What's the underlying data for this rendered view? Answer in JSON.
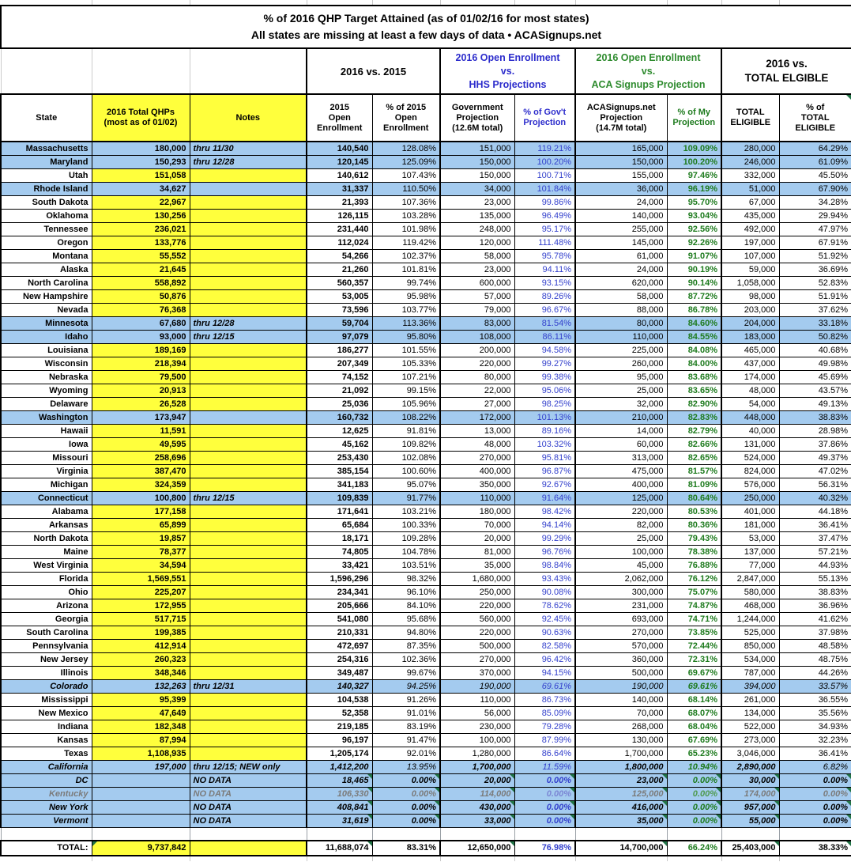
{
  "title": {
    "line1": "% of 2016 QHP Target Attained (as of 01/02/16 for most states)",
    "line2": "All states are missing at least a few days of data • ACASignups.net"
  },
  "groups": {
    "vs2015": "2016 vs. 2015",
    "hhs": "2016 Open Enrollment\nvs.\nHHS Projections",
    "acasignups": "2016 Open Enrollment\nvs.\nACA Signups Projection",
    "eligible": "2016 vs.\nTOTAL ELGIBLE"
  },
  "columns": {
    "state": "State",
    "qhp": "2016 Total QHPs\n(most as of 01/02)",
    "notes": "Notes",
    "oe2015": "2015\nOpen\nEnrollment",
    "pct2015": "% of 2015\nOpen\nEnrollment",
    "gov": "Government\nProjection\n(12.6M total)",
    "pctgov": "% of Gov't\nProjection",
    "aca": "ACASignups.net\nProjection\n(14.7M total)",
    "pctaca": "% of My\nProjection",
    "eligible": "TOTAL\nELIGIBLE",
    "pcteligible": "% of\nTOTAL\nELIGIBLE"
  },
  "colors": {
    "row_blue": "#A4CBEF",
    "cell_yellow": "#FFFF3C",
    "blue_text": "#3340CC",
    "green_text": "#1E7B1E",
    "gray_text": "#7B7B7B",
    "triangle_green": "#217346"
  },
  "rows": [
    [
      "Massachusetts",
      "180,000",
      "thru 11/30",
      "140,540",
      "128.08%",
      "151,000",
      "119.21%",
      "165,000",
      "109.09%",
      "280,000",
      "64.29%",
      "b"
    ],
    [
      "Maryland",
      "150,293",
      "thru 12/28",
      "120,145",
      "125.09%",
      "150,000",
      "100.20%",
      "150,000",
      "100.20%",
      "246,000",
      "61.09%",
      "b"
    ],
    [
      "Utah",
      "151,058",
      "",
      "140,612",
      "107.43%",
      "150,000",
      "100.71%",
      "155,000",
      "97.46%",
      "332,000",
      "45.50%",
      ""
    ],
    [
      "Rhode Island",
      "34,627",
      "",
      "31,337",
      "110.50%",
      "34,000",
      "101.84%",
      "36,000",
      "96.19%",
      "51,000",
      "67.90%",
      "b"
    ],
    [
      "South Dakota",
      "22,967",
      "",
      "21,393",
      "107.36%",
      "23,000",
      "99.86%",
      "24,000",
      "95.70%",
      "67,000",
      "34.28%",
      ""
    ],
    [
      "Oklahoma",
      "130,256",
      "",
      "126,115",
      "103.28%",
      "135,000",
      "96.49%",
      "140,000",
      "93.04%",
      "435,000",
      "29.94%",
      ""
    ],
    [
      "Tennessee",
      "236,021",
      "",
      "231,440",
      "101.98%",
      "248,000",
      "95.17%",
      "255,000",
      "92.56%",
      "492,000",
      "47.97%",
      ""
    ],
    [
      "Oregon",
      "133,776",
      "",
      "112,024",
      "119.42%",
      "120,000",
      "111.48%",
      "145,000",
      "92.26%",
      "197,000",
      "67.91%",
      ""
    ],
    [
      "Montana",
      "55,552",
      "",
      "54,266",
      "102.37%",
      "58,000",
      "95.78%",
      "61,000",
      "91.07%",
      "107,000",
      "51.92%",
      ""
    ],
    [
      "Alaska",
      "21,645",
      "",
      "21,260",
      "101.81%",
      "23,000",
      "94.11%",
      "24,000",
      "90.19%",
      "59,000",
      "36.69%",
      ""
    ],
    [
      "North Carolina",
      "558,892",
      "",
      "560,357",
      "99.74%",
      "600,000",
      "93.15%",
      "620,000",
      "90.14%",
      "1,058,000",
      "52.83%",
      ""
    ],
    [
      "New Hampshire",
      "50,876",
      "",
      "53,005",
      "95.98%",
      "57,000",
      "89.26%",
      "58,000",
      "87.72%",
      "98,000",
      "51.91%",
      ""
    ],
    [
      "Nevada",
      "76,368",
      "",
      "73,596",
      "103.77%",
      "79,000",
      "96.67%",
      "88,000",
      "86.78%",
      "203,000",
      "37.62%",
      ""
    ],
    [
      "Minnesota",
      "67,680",
      "thru 12/28",
      "59,704",
      "113.36%",
      "83,000",
      "81.54%",
      "80,000",
      "84.60%",
      "204,000",
      "33.18%",
      "b"
    ],
    [
      "Idaho",
      "93,000",
      "thru 12/15",
      "97,079",
      "95.80%",
      "108,000",
      "86.11%",
      "110,000",
      "84.55%",
      "183,000",
      "50.82%",
      "b"
    ],
    [
      "Louisiana",
      "189,169",
      "",
      "186,277",
      "101.55%",
      "200,000",
      "94.58%",
      "225,000",
      "84.08%",
      "465,000",
      "40.68%",
      ""
    ],
    [
      "Wisconsin",
      "218,394",
      "",
      "207,349",
      "105.33%",
      "220,000",
      "99.27%",
      "260,000",
      "84.00%",
      "437,000",
      "49.98%",
      ""
    ],
    [
      "Nebraska",
      "79,500",
      "",
      "74,152",
      "107.21%",
      "80,000",
      "99.38%",
      "95,000",
      "83.68%",
      "174,000",
      "45.69%",
      ""
    ],
    [
      "Wyoming",
      "20,913",
      "",
      "21,092",
      "99.15%",
      "22,000",
      "95.06%",
      "25,000",
      "83.65%",
      "48,000",
      "43.57%",
      ""
    ],
    [
      "Delaware",
      "26,528",
      "",
      "25,036",
      "105.96%",
      "27,000",
      "98.25%",
      "32,000",
      "82.90%",
      "54,000",
      "49.13%",
      ""
    ],
    [
      "Washington",
      "173,947",
      "",
      "160,732",
      "108.22%",
      "172,000",
      "101.13%",
      "210,000",
      "82.83%",
      "448,000",
      "38.83%",
      "b"
    ],
    [
      "Hawaii",
      "11,591",
      "",
      "12,625",
      "91.81%",
      "13,000",
      "89.16%",
      "14,000",
      "82.79%",
      "40,000",
      "28.98%",
      ""
    ],
    [
      "Iowa",
      "49,595",
      "",
      "45,162",
      "109.82%",
      "48,000",
      "103.32%",
      "60,000",
      "82.66%",
      "131,000",
      "37.86%",
      ""
    ],
    [
      "Missouri",
      "258,696",
      "",
      "253,430",
      "102.08%",
      "270,000",
      "95.81%",
      "313,000",
      "82.65%",
      "524,000",
      "49.37%",
      ""
    ],
    [
      "Virginia",
      "387,470",
      "",
      "385,154",
      "100.60%",
      "400,000",
      "96.87%",
      "475,000",
      "81.57%",
      "824,000",
      "47.02%",
      ""
    ],
    [
      "Michigan",
      "324,359",
      "",
      "341,183",
      "95.07%",
      "350,000",
      "92.67%",
      "400,000",
      "81.09%",
      "576,000",
      "56.31%",
      ""
    ],
    [
      "Connecticut",
      "100,800",
      "thru 12/15",
      "109,839",
      "91.77%",
      "110,000",
      "91.64%",
      "125,000",
      "80.64%",
      "250,000",
      "40.32%",
      "b"
    ],
    [
      "Alabama",
      "177,158",
      "",
      "171,641",
      "103.21%",
      "180,000",
      "98.42%",
      "220,000",
      "80.53%",
      "401,000",
      "44.18%",
      ""
    ],
    [
      "Arkansas",
      "65,899",
      "",
      "65,684",
      "100.33%",
      "70,000",
      "94.14%",
      "82,000",
      "80.36%",
      "181,000",
      "36.41%",
      ""
    ],
    [
      "North Dakota",
      "19,857",
      "",
      "18,171",
      "109.28%",
      "20,000",
      "99.29%",
      "25,000",
      "79.43%",
      "53,000",
      "37.47%",
      ""
    ],
    [
      "Maine",
      "78,377",
      "",
      "74,805",
      "104.78%",
      "81,000",
      "96.76%",
      "100,000",
      "78.38%",
      "137,000",
      "57.21%",
      ""
    ],
    [
      "West Virginia",
      "34,594",
      "",
      "33,421",
      "103.51%",
      "35,000",
      "98.84%",
      "45,000",
      "76.88%",
      "77,000",
      "44.93%",
      ""
    ],
    [
      "Florida",
      "1,569,551",
      "",
      "1,596,296",
      "98.32%",
      "1,680,000",
      "93.43%",
      "2,062,000",
      "76.12%",
      "2,847,000",
      "55.13%",
      ""
    ],
    [
      "Ohio",
      "225,207",
      "",
      "234,341",
      "96.10%",
      "250,000",
      "90.08%",
      "300,000",
      "75.07%",
      "580,000",
      "38.83%",
      ""
    ],
    [
      "Arizona",
      "172,955",
      "",
      "205,666",
      "84.10%",
      "220,000",
      "78.62%",
      "231,000",
      "74.87%",
      "468,000",
      "36.96%",
      ""
    ],
    [
      "Georgia",
      "517,715",
      "",
      "541,080",
      "95.68%",
      "560,000",
      "92.45%",
      "693,000",
      "74.71%",
      "1,244,000",
      "41.62%",
      ""
    ],
    [
      "South Carolina",
      "199,385",
      "",
      "210,331",
      "94.80%",
      "220,000",
      "90.63%",
      "270,000",
      "73.85%",
      "525,000",
      "37.98%",
      ""
    ],
    [
      "Pennsylvania",
      "412,914",
      "",
      "472,697",
      "87.35%",
      "500,000",
      "82.58%",
      "570,000",
      "72.44%",
      "850,000",
      "48.58%",
      ""
    ],
    [
      "New Jersey",
      "260,323",
      "",
      "254,316",
      "102.36%",
      "270,000",
      "96.42%",
      "360,000",
      "72.31%",
      "534,000",
      "48.75%",
      ""
    ],
    [
      "Illinois",
      "348,346",
      "",
      "349,487",
      "99.67%",
      "370,000",
      "94.15%",
      "500,000",
      "69.67%",
      "787,000",
      "44.26%",
      ""
    ],
    [
      "Colorado",
      "132,263",
      "thru 12/31",
      "140,327",
      "94.25%",
      "190,000",
      "69.61%",
      "190,000",
      "69.61%",
      "394,000",
      "33.57%",
      "bi"
    ],
    [
      "Mississippi",
      "95,399",
      "",
      "104,538",
      "91.26%",
      "110,000",
      "86.73%",
      "140,000",
      "68.14%",
      "261,000",
      "36.55%",
      ""
    ],
    [
      "New Mexico",
      "47,649",
      "",
      "52,358",
      "91.01%",
      "56,000",
      "85.09%",
      "70,000",
      "68.07%",
      "134,000",
      "35.56%",
      ""
    ],
    [
      "Indiana",
      "182,348",
      "",
      "219,185",
      "83.19%",
      "230,000",
      "79.28%",
      "268,000",
      "68.04%",
      "522,000",
      "34.93%",
      ""
    ],
    [
      "Kansas",
      "87,994",
      "",
      "96,197",
      "91.47%",
      "100,000",
      "87.99%",
      "130,000",
      "67.69%",
      "273,000",
      "32.23%",
      ""
    ],
    [
      "Texas",
      "1,108,935",
      "",
      "1,205,174",
      "92.01%",
      "1,280,000",
      "86.64%",
      "1,700,000",
      "65.23%",
      "3,046,000",
      "36.41%",
      ""
    ],
    [
      "California",
      "197,000",
      "thru 12/15; NEW only",
      "1,412,200",
      "13.95%",
      "1,700,000",
      "11.59%",
      "1,800,000",
      "10.94%",
      "2,890,000",
      "6.82%",
      "ca"
    ],
    [
      "DC",
      "",
      "NO DATA",
      "18,465",
      "0.00%",
      "20,000",
      "0.00%",
      "23,000",
      "0.00%",
      "30,000",
      "0.00%",
      "nd"
    ],
    [
      "Kentucky",
      "",
      "NO DATA",
      "106,330",
      "0.00%",
      "114,000",
      "0.00%",
      "125,000",
      "0.00%",
      "174,000",
      "0.00%",
      "ndg"
    ],
    [
      "New York",
      "",
      "NO DATA",
      "408,841",
      "0.00%",
      "430,000",
      "0.00%",
      "416,000",
      "0.00%",
      "957,000",
      "0.00%",
      "nd"
    ],
    [
      "Vermont",
      "",
      "NO DATA",
      "31,619",
      "0.00%",
      "33,000",
      "0.00%",
      "35,000",
      "0.00%",
      "55,000",
      "0.00%",
      "nd"
    ]
  ],
  "total_row": [
    "TOTAL:",
    "9,737,842",
    "",
    "11,688,074",
    "83.31%",
    "12,650,000",
    "76.98%",
    "14,700,000",
    "66.24%",
    "25,403,000",
    "38.33%"
  ]
}
